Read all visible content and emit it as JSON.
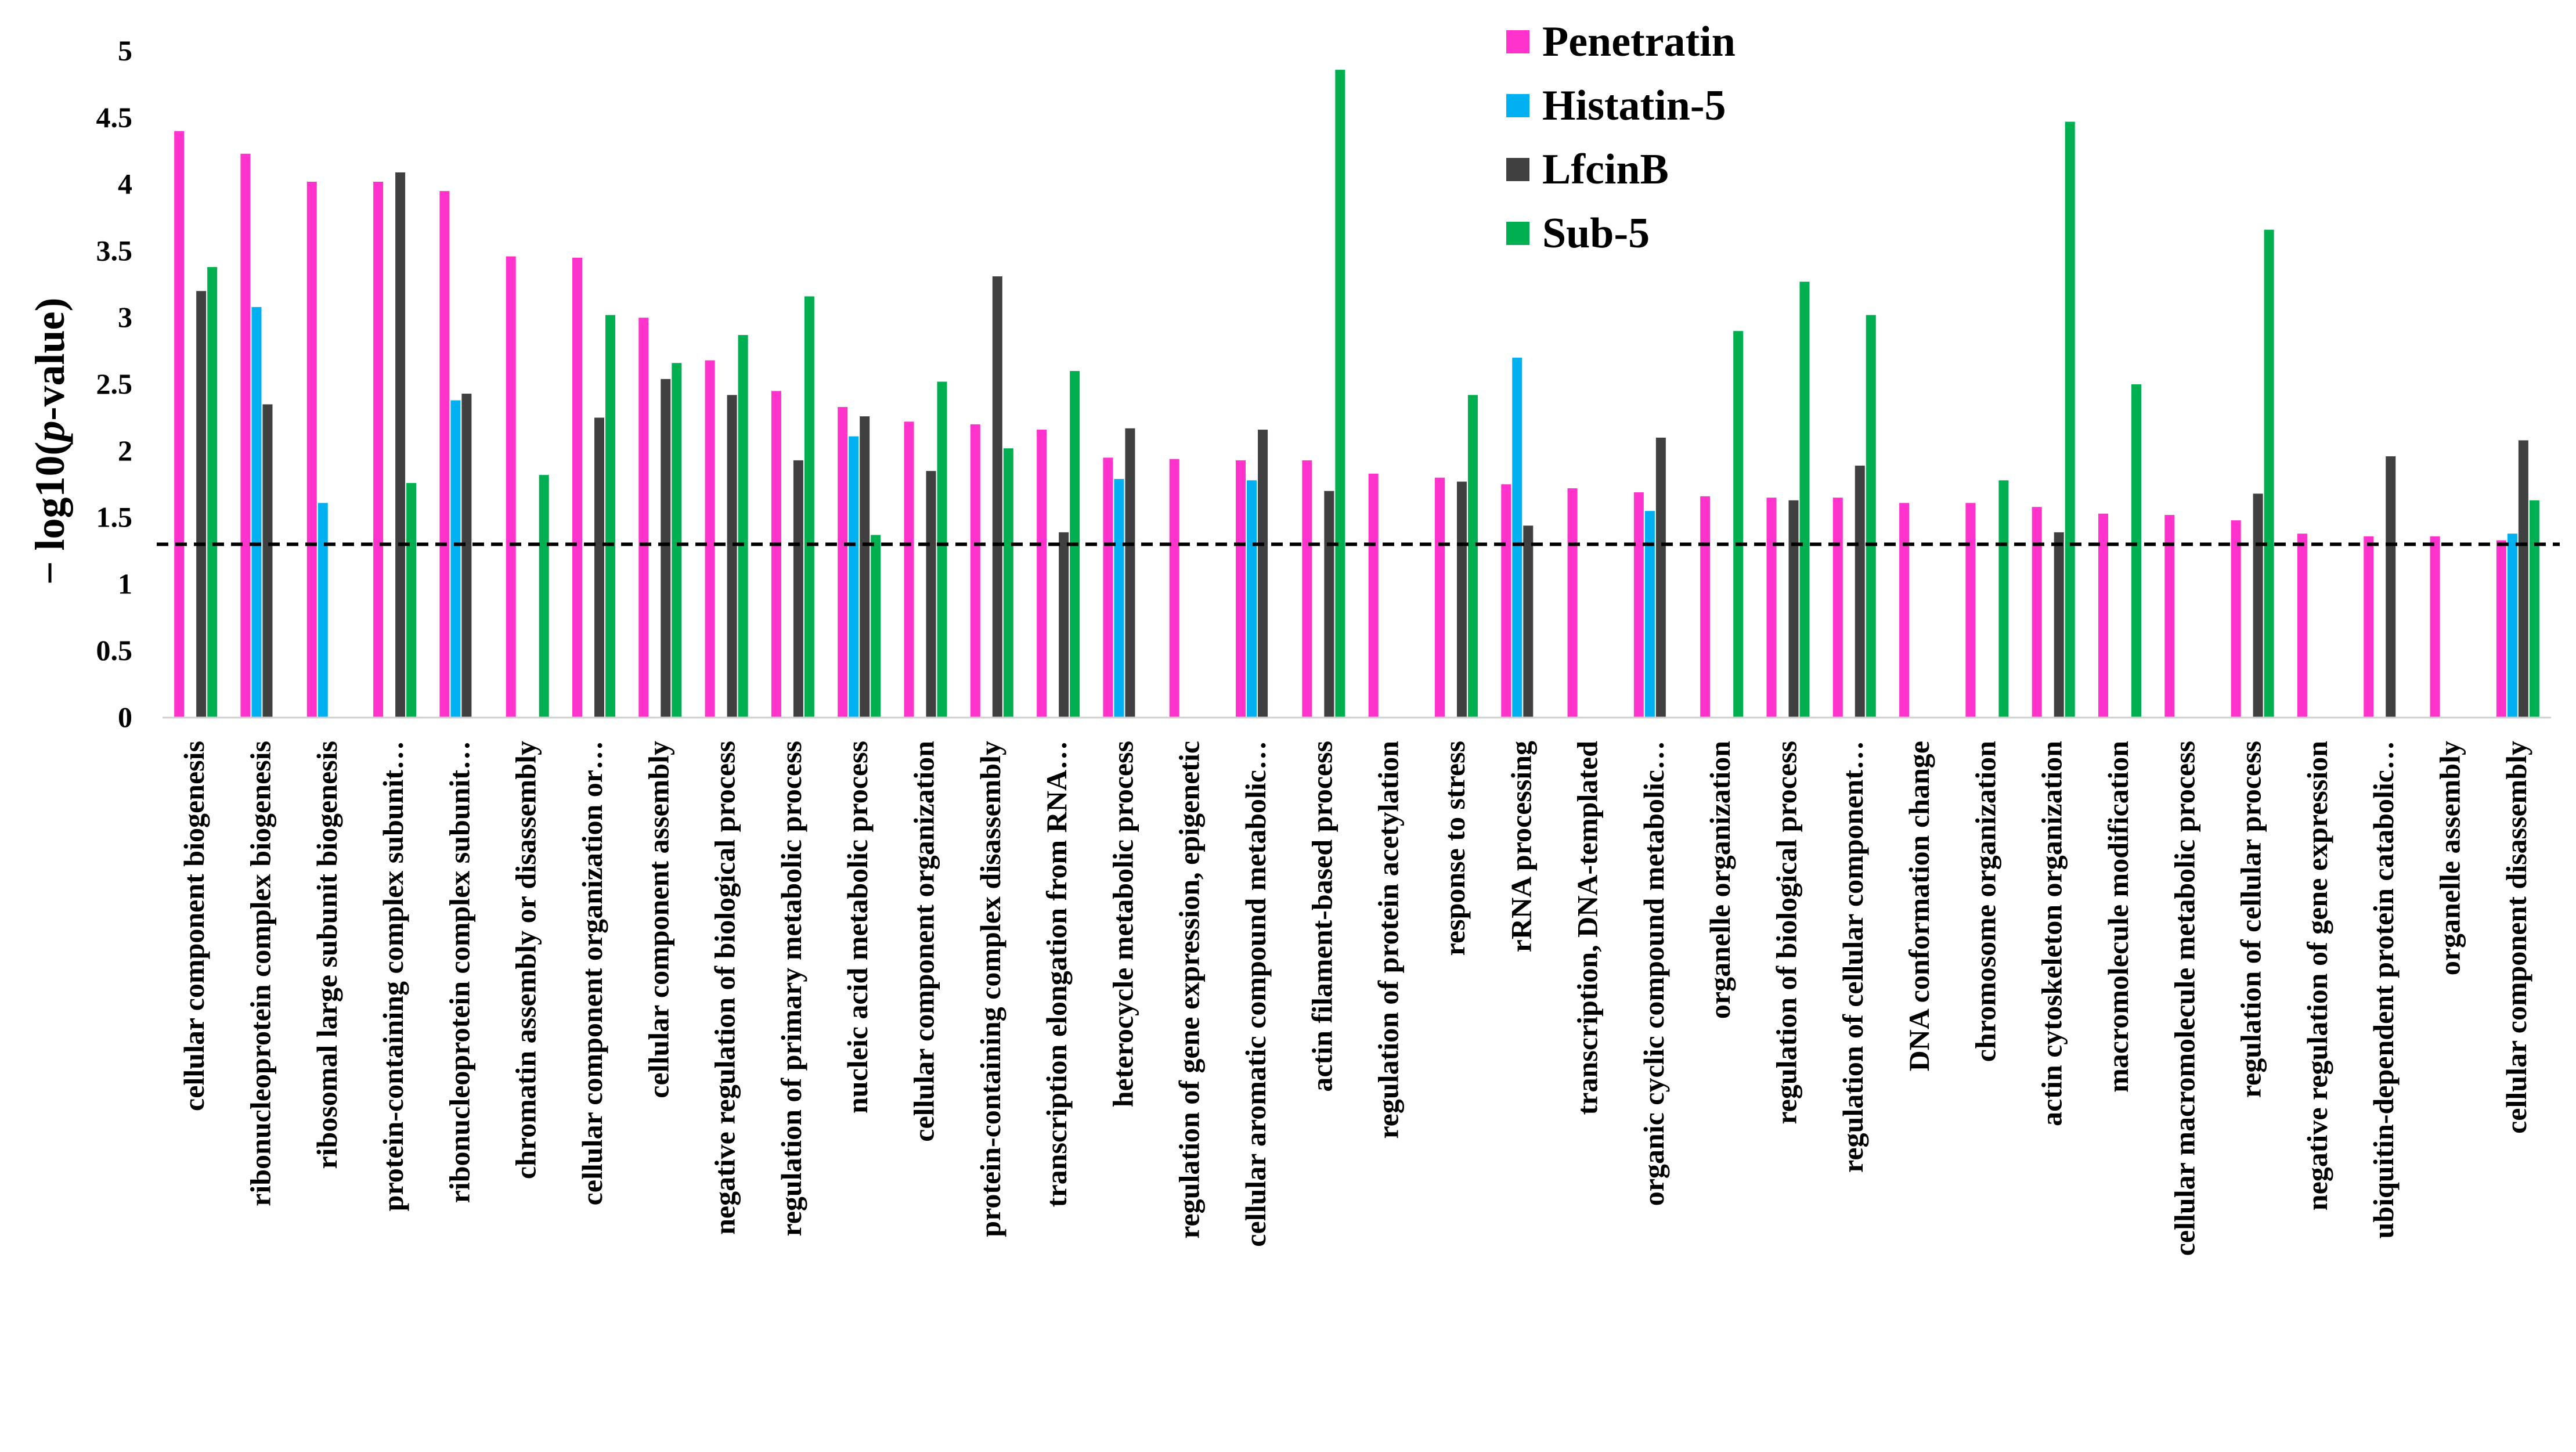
{
  "chart_data": {
    "type": "bar",
    "title": "",
    "xlabel": "",
    "ylabel": {
      "prefix": "− log10(",
      "italic": "p",
      "suffix": "-value)"
    },
    "ylim": [
      0,
      5
    ],
    "yticks": [
      "0",
      "0.5",
      "1",
      "1.5",
      "2",
      "2.5",
      "3",
      "3.5",
      "4",
      "4.5",
      "5"
    ],
    "threshold": 1.3,
    "legend_position": "top-center",
    "colors": {
      "Penetratin": "#ff33cc",
      "Histatin-5": "#00b0f0",
      "LfcinB": "#404040",
      "Sub-5": "#00b050"
    },
    "categories": [
      "cellular component biogenesis",
      "ribonucleoprotein complex biogenesis",
      "ribosomal large subunit biogenesis",
      "protein-containing complex subunit…",
      "ribonucleoprotein complex subunit…",
      "chromatin assembly or disassembly",
      "cellular component organization or…",
      "cellular component assembly",
      "negative regulation of biological process",
      "regulation of primary metabolic process",
      "nucleic acid metabolic process",
      "cellular component organization",
      "protein-containing complex disassembly",
      "transcription elongation from RNA…",
      "heterocycle metabolic process",
      "regulation of gene expression,  epigenetic",
      "cellular aromatic compound metabolic…",
      "actin filament-based process",
      "regulation of protein acetylation",
      "response to stress",
      "rRNA processing",
      "transcription,  DNA-templated",
      "organic cyclic compound metabolic…",
      "organelle organization",
      "regulation of biological process",
      "regulation of cellular component…",
      "DNA conformation change",
      "chromosome organization",
      "actin cytoskeleton organization",
      "macromolecule modification",
      "cellular macromolecule metabolic process",
      "regulation of cellular process",
      "negative regulation of gene expression",
      "ubiquitin-dependent protein catabolic…",
      "organelle assembly",
      "cellular component disassembly"
    ],
    "series": [
      {
        "name": "Penetratin",
        "values": [
          4.4,
          4.23,
          4.02,
          4.02,
          3.95,
          3.46,
          3.45,
          3.0,
          2.68,
          2.45,
          2.33,
          2.22,
          2.2,
          2.16,
          1.95,
          1.94,
          1.93,
          1.93,
          1.83,
          1.8,
          1.75,
          1.72,
          1.69,
          1.66,
          1.65,
          1.65,
          1.61,
          1.61,
          1.58,
          1.53,
          1.52,
          1.48,
          1.38,
          1.36,
          1.36,
          1.33
        ]
      },
      {
        "name": "Histatin-5",
        "values": [
          null,
          3.08,
          1.61,
          null,
          2.38,
          null,
          null,
          null,
          null,
          null,
          2.11,
          null,
          null,
          null,
          1.79,
          null,
          1.78,
          null,
          null,
          null,
          2.7,
          null,
          1.55,
          null,
          null,
          null,
          null,
          null,
          null,
          null,
          null,
          null,
          null,
          null,
          null,
          1.38
        ]
      },
      {
        "name": "LfcinB",
        "values": [
          3.2,
          2.35,
          null,
          4.09,
          2.43,
          null,
          2.25,
          2.54,
          2.42,
          1.93,
          2.26,
          1.85,
          3.31,
          1.39,
          2.17,
          null,
          2.16,
          1.7,
          null,
          1.77,
          1.44,
          null,
          2.1,
          null,
          1.63,
          1.89,
          null,
          null,
          1.39,
          null,
          null,
          1.68,
          null,
          1.96,
          null,
          2.08
        ]
      },
      {
        "name": "Sub-5",
        "values": [
          3.38,
          null,
          null,
          1.76,
          null,
          1.82,
          3.02,
          2.66,
          2.87,
          3.16,
          1.37,
          2.52,
          2.02,
          2.6,
          null,
          null,
          null,
          4.86,
          null,
          2.42,
          null,
          null,
          null,
          2.9,
          3.27,
          3.02,
          null,
          1.78,
          4.47,
          2.5,
          null,
          3.66,
          null,
          null,
          null,
          1.63
        ]
      }
    ]
  }
}
